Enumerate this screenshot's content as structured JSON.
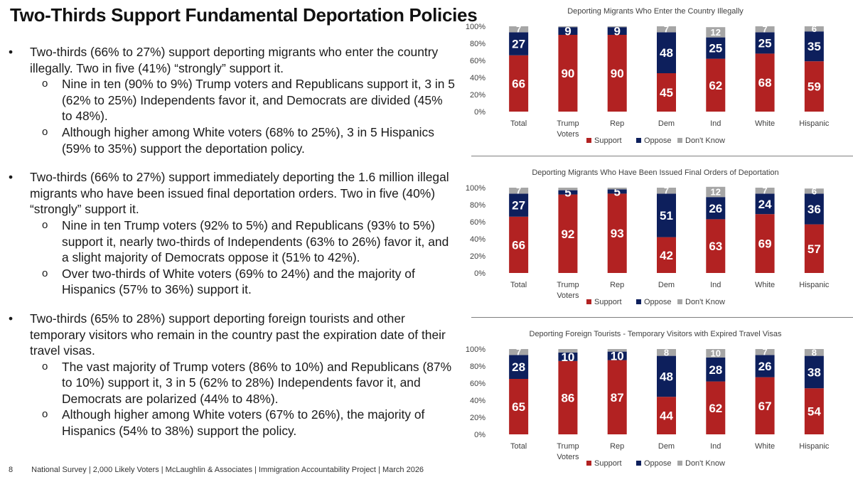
{
  "page_title": "Two-Thirds Support Fundamental Deportation Policies",
  "bullets": [
    {
      "text": "Two-thirds (66% to 27%) support deporting migrants who enter the country illegally. Two in five (41%) “strongly” support it.",
      "subs": [
        "Nine in ten (90% to 9%) Trump voters and Republicans support it, 3 in 5 (62% to 25%) Independents favor it, and Democrats are divided (45% to 48%).",
        "Although higher among White voters (68% to 25%), 3 in 5 Hispanics (59% to 35%) support the deportation policy."
      ]
    },
    {
      "text": "Two-thirds (66% to 27%) support immediately deporting the 1.6 million illegal migrants who have been issued final deportation orders. Two in five (40%) “strongly” support it.",
      "subs": [
        "Nine in ten Trump voters (92% to 5%) and Republicans (93% to 5%) support it, nearly two-thirds of Independents (63% to 26%) favor it, and a slight majority of Democrats oppose it (51% to 42%).",
        "Over two-thirds of White voters (69% to 24%) and the majority of Hispanics (57% to 36%) support it."
      ]
    },
    {
      "text": "Two-thirds (65% to 28%) support deporting foreign tourists and other temporary visitors who remain in the country past the expiration date of their travel visas.",
      "subs": [
        "The vast majority of Trump voters (86% to 10%) and Republicans (87% to 10%) support it, 3 in 5 (62% to 28%) Independents favor it, and Democrats are polarized (44% to 48%).",
        "Although higher among White voters (67% to 26%), the majority of Hispanics (54% to 38%) support the policy."
      ]
    }
  ],
  "footer": {
    "page_number": "8",
    "text": "National Survey | 2,000 Likely Voters | McLaughlin & Associates | Immigration Accountability Project | March 2026"
  },
  "colors": {
    "support": "#b22222",
    "oppose": "#0d1f5c",
    "dont_know": "#a6a6a6"
  },
  "chart_data": [
    {
      "type": "bar",
      "stacked": true,
      "title": "Deporting Migrants Who Enter the Country Illegally",
      "categories": [
        "Total",
        "Trump\nVoters",
        "Rep",
        "Dem",
        "Ind",
        "White",
        "Hispanic"
      ],
      "ylim": [
        0,
        100
      ],
      "yticks": [
        "0%",
        "20%",
        "40%",
        "60%",
        "80%",
        "100%"
      ],
      "legend_position": "bottom",
      "series": [
        {
          "name": "Support",
          "color": "#b22222",
          "values": [
            66,
            90,
            90,
            45,
            62,
            68,
            59
          ]
        },
        {
          "name": "Oppose",
          "color": "#0d1f5c",
          "values": [
            27,
            9,
            9,
            48,
            25,
            25,
            35
          ]
        },
        {
          "name": "Don't Know",
          "color": "#a6a6a6",
          "values": [
            7,
            1,
            1,
            7,
            12,
            7,
            6
          ]
        }
      ],
      "labels": [
        [
          "66",
          "90",
          "90",
          "45",
          "62",
          "68",
          "59"
        ],
        [
          "27",
          "9",
          "9",
          "48",
          "25",
          "25",
          "35"
        ],
        [
          "7",
          "",
          "",
          "7",
          "12",
          "7",
          "6"
        ]
      ]
    },
    {
      "type": "bar",
      "stacked": true,
      "title": "Deporting Migrants Who Have Been Issued Final Orders of Deportation",
      "categories": [
        "Total",
        "Trump\nVoters",
        "Rep",
        "Dem",
        "Ind",
        "White",
        "Hispanic"
      ],
      "ylim": [
        0,
        100
      ],
      "yticks": [
        "0%",
        "20%",
        "40%",
        "60%",
        "80%",
        "100%"
      ],
      "legend_position": "bottom",
      "series": [
        {
          "name": "Support",
          "color": "#b22222",
          "values": [
            66,
            92,
            93,
            42,
            63,
            69,
            57
          ]
        },
        {
          "name": "Oppose",
          "color": "#0d1f5c",
          "values": [
            27,
            5,
            5,
            51,
            26,
            24,
            36
          ]
        },
        {
          "name": "Don't Know",
          "color": "#a6a6a6",
          "values": [
            7,
            3,
            2,
            7,
            12,
            7,
            6
          ]
        }
      ],
      "labels": [
        [
          "66",
          "92",
          "93",
          "42",
          "63",
          "69",
          "57"
        ],
        [
          "27",
          "5",
          "5",
          "51",
          "26",
          "24",
          "36"
        ],
        [
          "7",
          "",
          "",
          "7",
          "12",
          "7",
          "6"
        ]
      ]
    },
    {
      "type": "bar",
      "stacked": true,
      "title": "Deporting Foreign Tourists - Temporary Visitors with Expired Travel Visas",
      "categories": [
        "Total",
        "Trump\nVoters",
        "Rep",
        "Dem",
        "Ind",
        "White",
        "Hispanic"
      ],
      "ylim": [
        0,
        100
      ],
      "yticks": [
        "0%",
        "20%",
        "40%",
        "60%",
        "80%",
        "100%"
      ],
      "legend_position": "bottom",
      "series": [
        {
          "name": "Support",
          "color": "#b22222",
          "values": [
            65,
            86,
            87,
            44,
            62,
            67,
            54
          ]
        },
        {
          "name": "Oppose",
          "color": "#0d1f5c",
          "values": [
            28,
            10,
            10,
            48,
            28,
            26,
            38
          ]
        },
        {
          "name": "Don't Know",
          "color": "#a6a6a6",
          "values": [
            7,
            4,
            3,
            8,
            10,
            7,
            8
          ]
        }
      ],
      "labels": [
        [
          "65",
          "86",
          "87",
          "44",
          "62",
          "67",
          "54"
        ],
        [
          "28",
          "10",
          "10",
          "48",
          "28",
          "26",
          "38"
        ],
        [
          "7",
          "",
          "",
          "8",
          "10",
          "7",
          "8"
        ]
      ]
    }
  ]
}
